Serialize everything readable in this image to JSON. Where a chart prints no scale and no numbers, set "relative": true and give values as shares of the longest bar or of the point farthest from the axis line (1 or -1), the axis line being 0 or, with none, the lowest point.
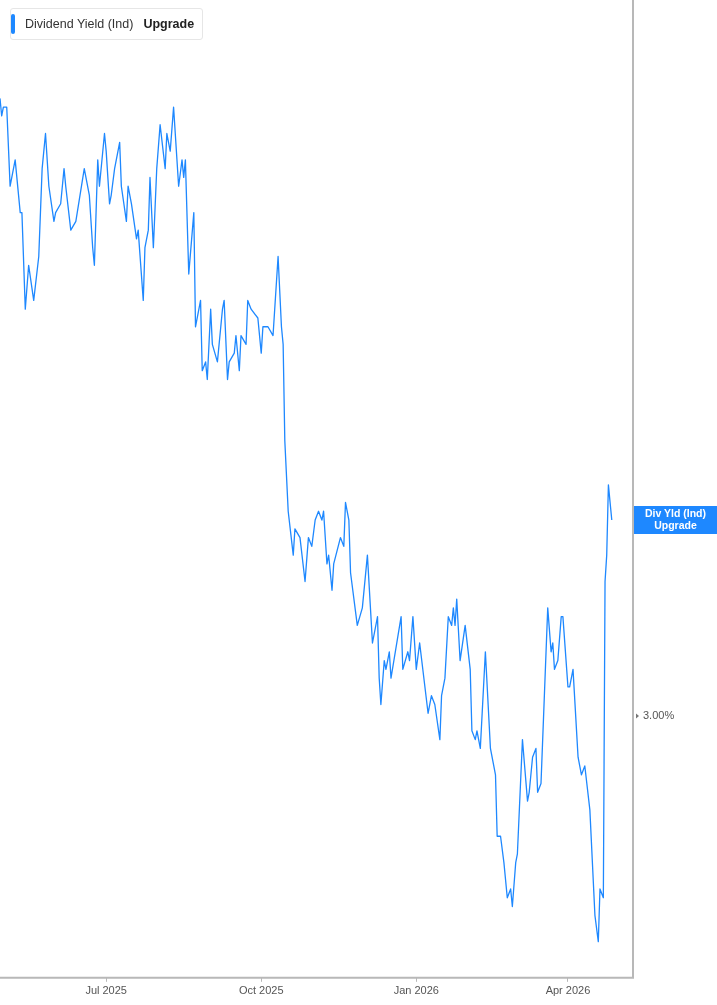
{
  "chart_data": {
    "type": "line",
    "relative": true,
    "legend": "top left",
    "grid": false,
    "marker": "none",
    "xlim": [
      "2025-04-29",
      "2026-05-09"
    ],
    "xticks": [
      {
        "value": "2025-07-01",
        "label": "Jul 2025"
      },
      {
        "value": "2025-10-01",
        "label": "Oct 2025"
      },
      {
        "value": "2026-01-01",
        "label": "Jan 2026"
      },
      {
        "value": "2026-04-01",
        "label": "Apr 2026"
      }
    ],
    "annotations": [
      "Upgrade",
      "3.00%",
      "Div Yld (Ind) Upgrade"
    ],
    "x": [
      "2025-04-29",
      "2025-04-30",
      "2025-05-01",
      "2025-05-03",
      "2025-05-05",
      "2025-05-08",
      "2025-05-11",
      "2025-05-12",
      "2025-05-14",
      "2025-05-16",
      "2025-05-19",
      "2025-05-22",
      "2025-05-24",
      "2025-05-26",
      "2025-05-28",
      "2025-05-31",
      "2025-06-01",
      "2025-06-04",
      "2025-06-06",
      "2025-06-07",
      "2025-06-10",
      "2025-06-13",
      "2025-06-18",
      "2025-06-21",
      "2025-06-23",
      "2025-06-24",
      "2025-06-26",
      "2025-06-27",
      "2025-06-30",
      "2025-07-01",
      "2025-07-03",
      "2025-07-04",
      "2025-07-06",
      "2025-07-09",
      "2025-07-10",
      "2025-07-13",
      "2025-07-14",
      "2025-07-16",
      "2025-07-19",
      "2025-07-20",
      "2025-07-23",
      "2025-07-24",
      "2025-07-26",
      "2025-07-27",
      "2025-07-29",
      "2025-07-31",
      "2025-08-02",
      "2025-08-05",
      "2025-08-06",
      "2025-08-08",
      "2025-08-10",
      "2025-08-13",
      "2025-08-15",
      "2025-08-16",
      "2025-08-17",
      "2025-08-19",
      "2025-08-22",
      "2025-08-23",
      "2025-08-26",
      "2025-08-27",
      "2025-08-29",
      "2025-08-30",
      "2025-09-01",
      "2025-09-02",
      "2025-09-05",
      "2025-09-08",
      "2025-09-09",
      "2025-09-11",
      "2025-09-12",
      "2025-09-15",
      "2025-09-16",
      "2025-09-18",
      "2025-09-19",
      "2025-09-22",
      "2025-09-23",
      "2025-09-25",
      "2025-09-29",
      "2025-10-01",
      "2025-10-02",
      "2025-10-05",
      "2025-10-08",
      "2025-10-09",
      "2025-10-11",
      "2025-10-13",
      "2025-10-14",
      "2025-10-15",
      "2025-10-17",
      "2025-10-20",
      "2025-10-21",
      "2025-10-24",
      "2025-10-27",
      "2025-10-29",
      "2025-10-31",
      "2025-11-02",
      "2025-11-04",
      "2025-11-06",
      "2025-11-07",
      "2025-11-09",
      "2025-11-10",
      "2025-11-12",
      "2025-11-13",
      "2025-11-17",
      "2025-11-19",
      "2025-11-20",
      "2025-11-22",
      "2025-11-23",
      "2025-11-27",
      "2025-11-30",
      "2025-12-03",
      "2025-12-06",
      "2025-12-09",
      "2025-12-10",
      "2025-12-11",
      "2025-12-13",
      "2025-12-14",
      "2025-12-16",
      "2025-12-17",
      "2025-12-23",
      "2025-12-24",
      "2025-12-27",
      "2025-12-28",
      "2025-12-30",
      "2026-01-01",
      "2026-01-03",
      "2026-01-08",
      "2026-01-10",
      "2026-01-12",
      "2026-01-15",
      "2026-01-16",
      "2026-01-18",
      "2026-01-20",
      "2026-01-22",
      "2026-01-23",
      "2026-01-24",
      "2026-01-25",
      "2026-01-27",
      "2026-01-30",
      "2026-02-02",
      "2026-02-03",
      "2026-02-05",
      "2026-02-06",
      "2026-02-08",
      "2026-02-11",
      "2026-02-14",
      "2026-02-17",
      "2026-02-18",
      "2026-02-20",
      "2026-02-22",
      "2026-02-24",
      "2026-02-26",
      "2026-02-27",
      "2026-03-01",
      "2026-03-02",
      "2026-03-05",
      "2026-03-08",
      "2026-03-09",
      "2026-03-11",
      "2026-03-13",
      "2026-03-14",
      "2026-03-16",
      "2026-03-18",
      "2026-03-20",
      "2026-03-22",
      "2026-03-23",
      "2026-03-24",
      "2026-03-26",
      "2026-03-28",
      "2026-03-29",
      "2026-04-01",
      "2026-04-02",
      "2026-04-04",
      "2026-04-07",
      "2026-04-09",
      "2026-04-11",
      "2026-04-14",
      "2026-04-17",
      "2026-04-19",
      "2026-04-20",
      "2026-04-22",
      "2026-04-23",
      "2026-04-24",
      "2026-04-25",
      "2026-04-27"
    ],
    "series": [
      {
        "name": "Dividend Yield (Ind)",
        "color": "#1e88ff",
        "values": [
          1.0,
          0.98,
          0.99,
          0.99,
          0.9,
          0.93,
          0.87,
          0.87,
          0.76,
          0.81,
          0.77,
          0.82,
          0.92,
          0.96,
          0.9,
          0.86,
          0.87,
          0.88,
          0.92,
          0.9,
          0.85,
          0.86,
          0.92,
          0.89,
          0.83,
          0.81,
          0.93,
          0.9,
          0.96,
          0.94,
          0.88,
          0.89,
          0.92,
          0.95,
          0.9,
          0.86,
          0.9,
          0.88,
          0.84,
          0.85,
          0.77,
          0.83,
          0.85,
          0.91,
          0.83,
          0.92,
          0.97,
          0.92,
          0.96,
          0.94,
          0.99,
          0.9,
          0.93,
          0.91,
          0.93,
          0.8,
          0.87,
          0.74,
          0.77,
          0.69,
          0.7,
          0.68,
          0.76,
          0.72,
          0.7,
          0.76,
          0.77,
          0.68,
          0.7,
          0.71,
          0.73,
          0.69,
          0.73,
          0.72,
          0.77,
          0.76,
          0.75,
          0.71,
          0.74,
          0.74,
          0.73,
          0.76,
          0.82,
          0.74,
          0.72,
          0.61,
          0.53,
          0.48,
          0.51,
          0.5,
          0.45,
          0.5,
          0.49,
          0.52,
          0.53,
          0.52,
          0.53,
          0.47,
          0.48,
          0.44,
          0.47,
          0.5,
          0.49,
          0.54,
          0.52,
          0.46,
          0.4,
          0.42,
          0.48,
          0.38,
          0.41,
          0.34,
          0.31,
          0.36,
          0.35,
          0.37,
          0.34,
          0.41,
          0.35,
          0.37,
          0.36,
          0.41,
          0.35,
          0.38,
          0.3,
          0.32,
          0.31,
          0.27,
          0.32,
          0.34,
          0.41,
          0.4,
          0.42,
          0.4,
          0.43,
          0.36,
          0.4,
          0.35,
          0.28,
          0.27,
          0.28,
          0.26,
          0.37,
          0.26,
          0.23,
          0.16,
          0.16,
          0.13,
          0.09,
          0.1,
          0.08,
          0.13,
          0.14,
          0.27,
          0.2,
          0.21,
          0.25,
          0.26,
          0.21,
          0.22,
          0.32,
          0.42,
          0.37,
          0.38,
          0.35,
          0.36,
          0.41,
          0.41,
          0.33,
          0.33,
          0.35,
          0.25,
          0.23,
          0.24,
          0.19,
          0.07,
          0.04,
          0.1,
          0.09,
          0.45,
          0.48,
          0.56,
          0.52
        ]
      }
    ]
  }
}
